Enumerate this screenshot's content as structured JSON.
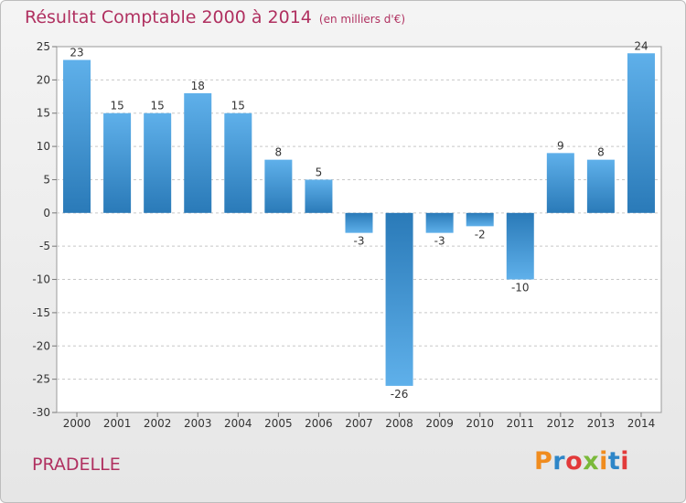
{
  "header": {
    "title": "Résultat Comptable 2000 à 2014",
    "unit": "(en milliers d'€)"
  },
  "footer": {
    "town": "PRADELLE",
    "brand": "Proxiti"
  },
  "colors": {
    "title": "#b03060",
    "bar_dark": "#2a7ab8",
    "bar_light": "#5fb0ea",
    "brand_letters": [
      "#f08c1e",
      "#2e86c8",
      "#e23a3a",
      "#7ab93a",
      "#f08c1e",
      "#2e86c8",
      "#e23a3a"
    ]
  },
  "chart_data": {
    "type": "bar",
    "categories": [
      "2000",
      "2001",
      "2002",
      "2003",
      "2004",
      "2005",
      "2006",
      "2007",
      "2008",
      "2009",
      "2010",
      "2011",
      "2012",
      "2013",
      "2014"
    ],
    "values": [
      23,
      15,
      15,
      18,
      15,
      8,
      5,
      -3,
      -26,
      -3,
      -2,
      -10,
      9,
      8,
      24
    ],
    "ylim": [
      -30,
      25
    ],
    "yticks": [
      -30,
      -25,
      -20,
      -15,
      -10,
      -5,
      0,
      5,
      10,
      15,
      20,
      25
    ],
    "grid": "horizontal dashed",
    "legend": "none",
    "data_labels": true
  }
}
